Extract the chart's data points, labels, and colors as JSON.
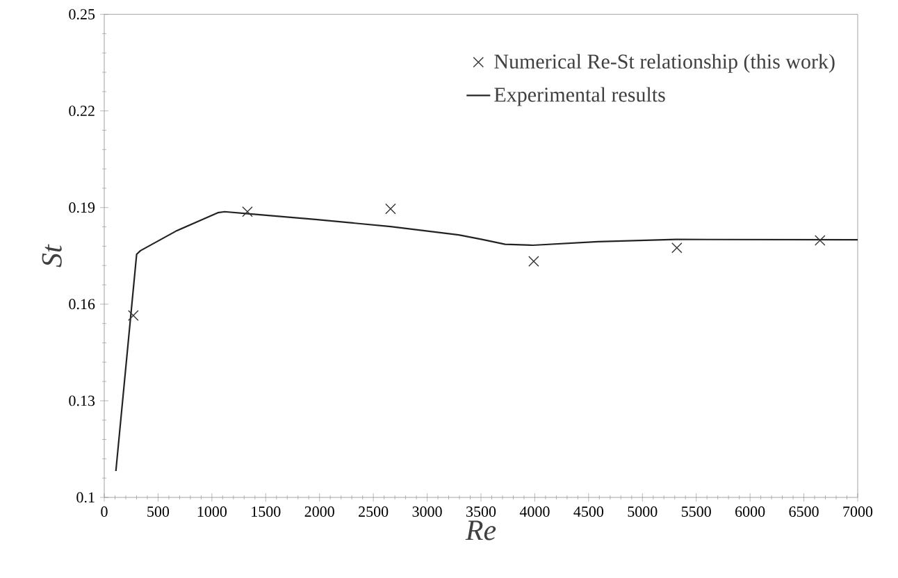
{
  "chart_data": {
    "type": "line",
    "xlabel": "*Re*",
    "ylabel": "*St*",
    "xlim": [
      0,
      7000
    ],
    "xticks": [
      0,
      500,
      1000,
      1500,
      2000,
      2500,
      3000,
      3500,
      4000,
      4500,
      5000,
      5500,
      6000,
      6500,
      7000
    ],
    "ylim": [
      0.1,
      0.25
    ],
    "yticks": [
      0.1,
      0.13,
      0.16,
      0.19,
      0.22,
      0.25
    ],
    "grid": false,
    "legend": "top right",
    "series": [
      {
        "name": "Numerical Re-St relationship (this work)",
        "type": "scatter",
        "marker": "cross",
        "color": "#333333",
        "x": [
          270,
          1330,
          2660,
          3990,
          5320,
          6650
        ],
        "values": [
          0.1565,
          0.1887,
          0.1896,
          0.1733,
          0.1775,
          0.1798
        ]
      },
      {
        "name": "Experimental results",
        "marker": "none",
        "line_style": "solid",
        "color": "#222222",
        "x": [
          108,
          301,
          336,
          667,
          1055,
          1119,
          1334,
          1962,
          2660,
          3293,
          3509,
          3724,
          3982,
          4585,
          5312,
          7000
        ],
        "values": [
          0.1082,
          0.1755,
          0.1766,
          0.1827,
          0.1884,
          0.1887,
          0.1881,
          0.1863,
          0.1841,
          0.1815,
          0.1801,
          0.1786,
          0.1783,
          0.1794,
          0.1801,
          0.18
        ]
      }
    ]
  }
}
